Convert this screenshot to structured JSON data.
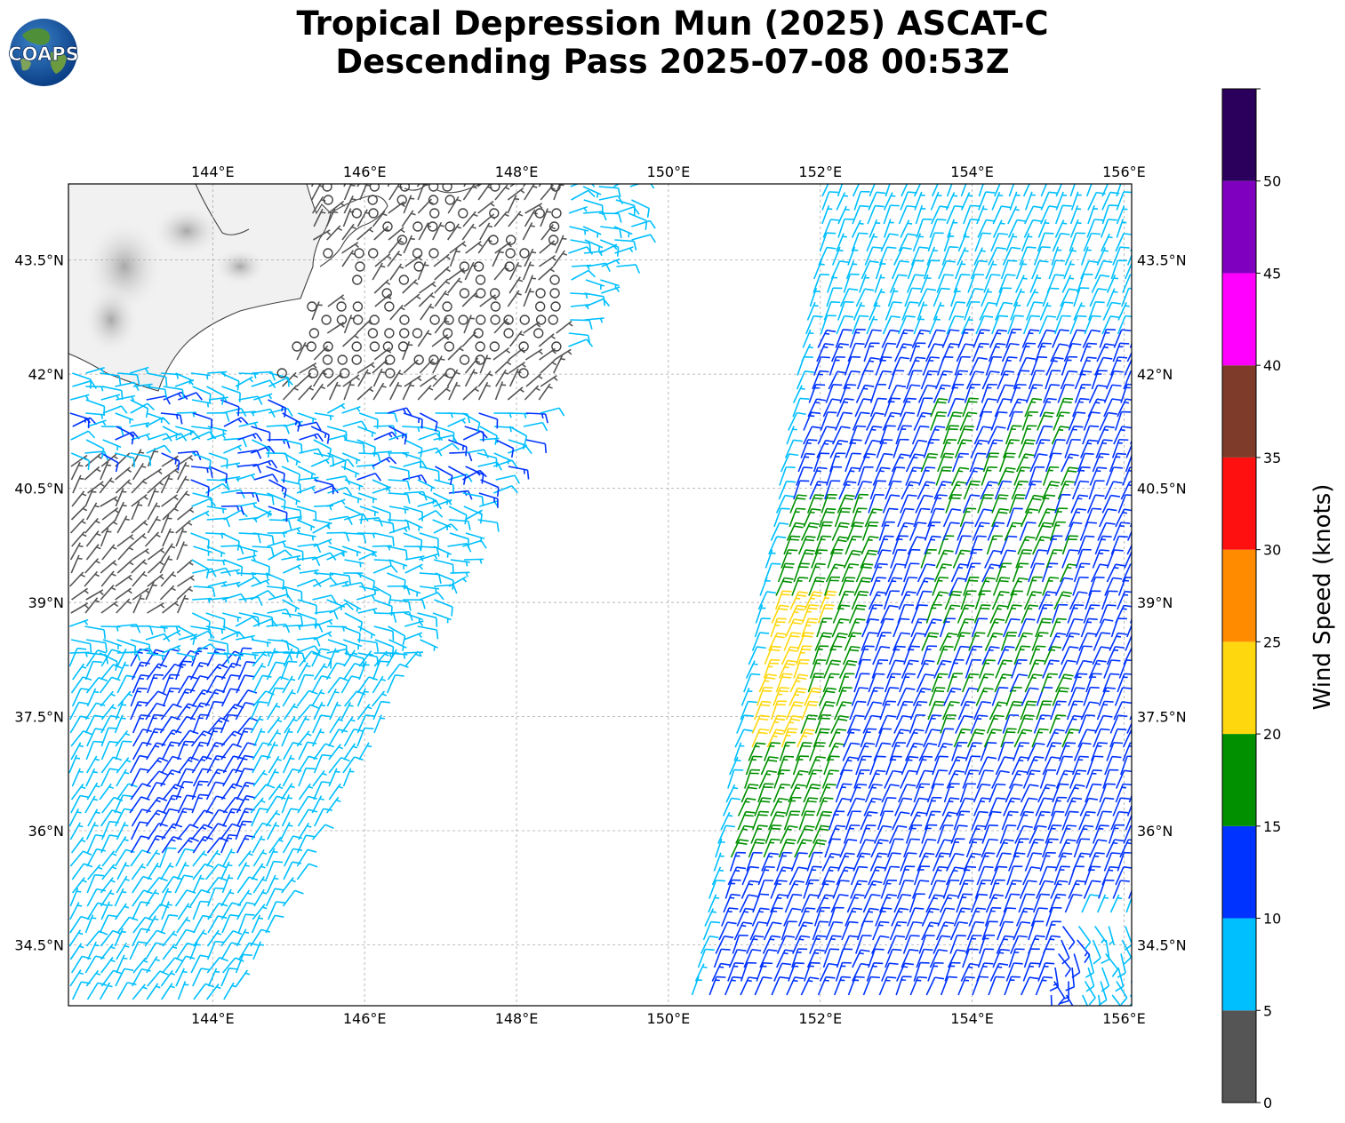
{
  "title": {
    "line1": "Tropical Depression Mun (2025) ASCAT-C",
    "line2": "Descending Pass 2025-07-08 00:53Z"
  },
  "logo": {
    "text": "COAPS",
    "icon": "globe-logo"
  },
  "map": {
    "lon_range": [
      142.1,
      156.1
    ],
    "lat_range": [
      33.7,
      44.5
    ],
    "lon_ticks": [
      "144°E",
      "146°E",
      "148°E",
      "150°E",
      "152°E",
      "154°E",
      "156°E"
    ],
    "lon_tick_values": [
      144,
      146,
      148,
      150,
      152,
      154,
      156
    ],
    "lat_ticks": [
      "34.5°N",
      "36°N",
      "37.5°N",
      "39°N",
      "40.5°N",
      "42°N",
      "43.5°N"
    ],
    "lat_tick_values": [
      34.5,
      36,
      37.5,
      39,
      40.5,
      42,
      43.5
    ],
    "grid": true,
    "land": "Hokkaido, Japan (grayscale terrain, upper-left)"
  },
  "colorbar": {
    "label": "Wind Speed (knots)",
    "ticks": [
      "0",
      "5",
      "10",
      "15",
      "20",
      "25",
      "30",
      "35",
      "40",
      "45",
      "50"
    ],
    "bins": [
      {
        "from": 0,
        "to": 5,
        "color": "#555555"
      },
      {
        "from": 5,
        "to": 10,
        "color": "#00bfff"
      },
      {
        "from": 10,
        "to": 15,
        "color": "#0033ff"
      },
      {
        "from": 15,
        "to": 20,
        "color": "#009000"
      },
      {
        "from": 20,
        "to": 25,
        "color": "#ffd70f"
      },
      {
        "from": 25,
        "to": 30,
        "color": "#ff8c00"
      },
      {
        "from": 30,
        "to": 35,
        "color": "#ff1010"
      },
      {
        "from": 35,
        "to": 40,
        "color": "#7e3b2a"
      },
      {
        "from": 40,
        "to": 45,
        "color": "#ff00ff"
      },
      {
        "from": 45,
        "to": 50,
        "color": "#8000c0"
      },
      {
        "from": 50,
        "to": 55,
        "color": "#2b005c"
      }
    ]
  },
  "wind_barbs": {
    "west_swath": "lower-left to upper swath, mostly 5-10 kt (cyan) with 10-15 kt (blue) and calm circles (<5 kt) near Hokkaido coast",
    "east_swath": "eastern swath from 150.3°E to 156°E, mostly 10-15 kt (blue) with 15-20 kt (green) and 20-25 kt (yellow) band near 151°E 37-39°N"
  }
}
